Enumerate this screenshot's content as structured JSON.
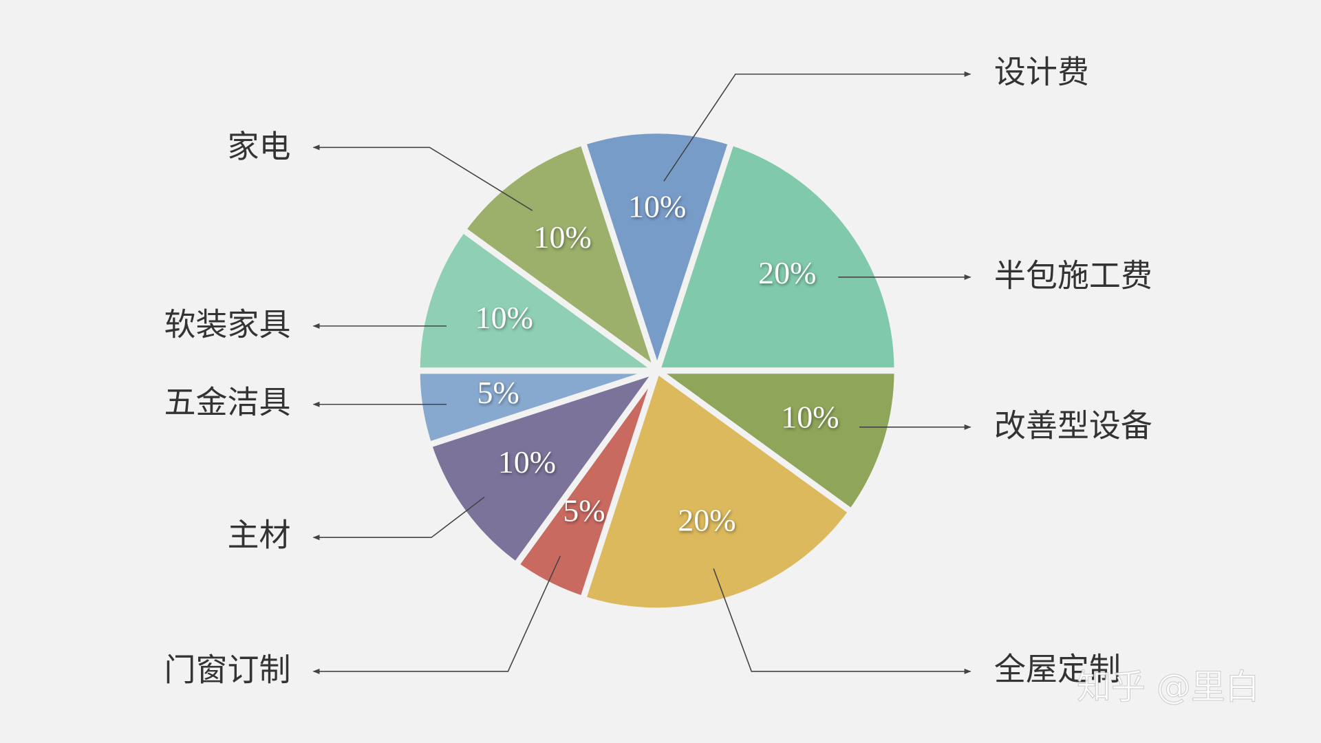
{
  "chart_data": {
    "type": "pie",
    "categories": [
      "设计费",
      "半包施工费",
      "改善型设备",
      "全屋定制",
      "门窗订制",
      "主材",
      "五金洁具",
      "软装家具",
      "家电"
    ],
    "values": [
      10,
      20,
      10,
      20,
      5,
      10,
      5,
      10,
      10
    ],
    "value_labels": [
      "10%",
      "20%",
      "10%",
      "20%",
      "5%",
      "10%",
      "5%",
      "10%",
      "10%"
    ],
    "colors": [
      "#789cc8",
      "#80caab",
      "#8fa65a",
      "#dbb95c",
      "#c96a60",
      "#7b7399",
      "#88a9cf",
      "#8fd0b5",
      "#9cb06b"
    ],
    "watermark": "知乎 @里白"
  }
}
